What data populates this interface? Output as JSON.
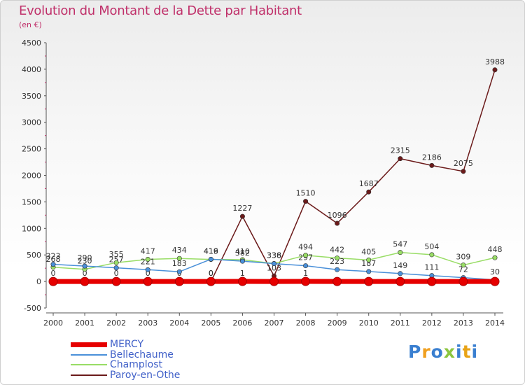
{
  "header": {
    "title": "Evolution du Montant de la Dette par Habitant",
    "subtitle": "(en €)"
  },
  "logo": {
    "text": "Proxiti",
    "colors": [
      "#3a7fd0",
      "#f0a020",
      "#3a7fd0",
      "#8cc63f",
      "#3a7fd0",
      "#e8a317",
      "#3a7fd0"
    ]
  },
  "chart_data": {
    "type": "line",
    "x": [
      2000,
      2001,
      2002,
      2003,
      2004,
      2005,
      2006,
      2007,
      2008,
      2009,
      2010,
      2011,
      2012,
      2013,
      2014
    ],
    "ylim": [
      -500,
      4500
    ],
    "yticks": [
      -500,
      0,
      500,
      1000,
      1500,
      2000,
      2500,
      3000,
      3500,
      4000,
      4500
    ],
    "grid": false,
    "legend_position": "bottom-left",
    "series": [
      {
        "name": "MERCY",
        "color": "#e60000",
        "values": [
          0,
          0,
          0,
          0,
          0,
          0,
          1,
          0,
          1,
          0,
          0,
          0,
          0,
          0,
          0
        ],
        "labels": [
          "0",
          "0",
          "0",
          "0",
          "0",
          "0",
          "1",
          "",
          "1",
          "",
          "",
          "",
          "",
          "",
          ""
        ]
      },
      {
        "name": "Bellechaume",
        "color": "#4a90d9",
        "values": [
          323,
          290,
          257,
          221,
          183,
          419,
          382,
          336,
          297,
          223,
          187,
          149,
          111,
          72,
          30
        ],
        "labels": [
          "323",
          "290",
          "257",
          "221",
          "183",
          "419",
          "382",
          "336",
          "297",
          "223",
          "187",
          "149",
          "111",
          "72",
          "30"
        ]
      },
      {
        "name": "Champlost",
        "color": "#99dd66",
        "values": [
          268,
          230,
          355,
          417,
          434,
          416,
          410,
          338,
          494,
          442,
          405,
          547,
          504,
          309,
          448
        ],
        "labels": [
          "268",
          "230",
          "355",
          "417",
          "434",
          "416",
          "410",
          "338",
          "494",
          "442",
          "405",
          "547",
          "504",
          "309",
          "448"
        ]
      },
      {
        "name": "Paroy-en-Othe",
        "color": "#6b1a1a",
        "values": [
          0,
          0,
          0,
          0,
          0,
          0,
          1227,
          103,
          1510,
          1096,
          1687,
          2315,
          2186,
          2075,
          3988
        ],
        "labels": [
          "",
          "",
          "",
          "",
          "",
          "0",
          "1227",
          "103",
          "1510",
          "1096",
          "1687",
          "2315",
          "2186",
          "2075",
          "3988"
        ]
      }
    ]
  }
}
